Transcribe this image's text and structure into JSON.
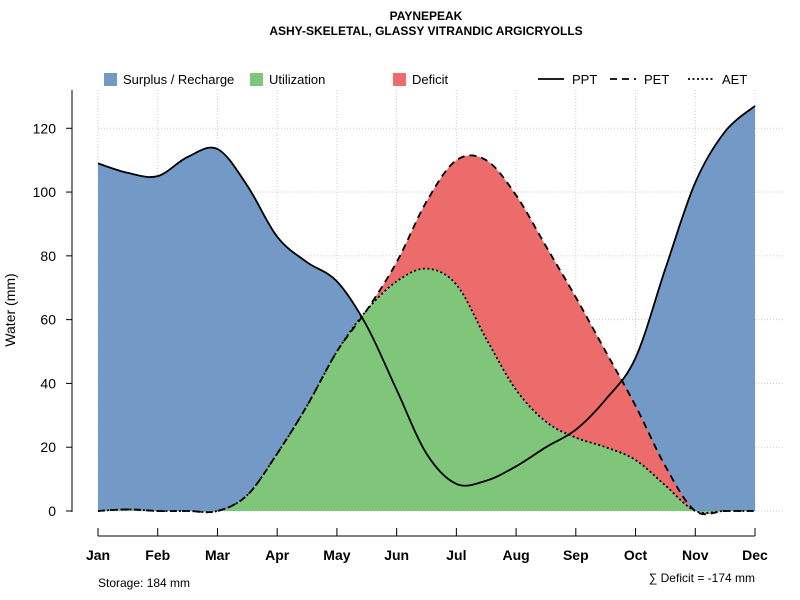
{
  "chart_data": {
    "type": "area",
    "title": "PAYNEPEAK",
    "subtitle": "ASHY-SKELETAL, GLASSY VITRANDIC ARGICRYOLLS",
    "ylabel": "Water (mm)",
    "xlabel": "",
    "ylim": [
      0,
      132
    ],
    "yticks": [
      0,
      20,
      40,
      60,
      80,
      100,
      120
    ],
    "categories": [
      "Jan",
      "Feb",
      "Mar",
      "Apr",
      "May",
      "Jun",
      "Jul",
      "Aug",
      "Sep",
      "Oct",
      "Nov",
      "Dec"
    ],
    "x": [
      1,
      2,
      3,
      4,
      5,
      6,
      7,
      8,
      9,
      10,
      11,
      12
    ],
    "grid": true,
    "series": [
      {
        "name": "PPT",
        "linestyle": "solid",
        "points": [
          [
            1,
            109
          ],
          [
            1.5,
            106
          ],
          [
            2,
            105
          ],
          [
            2.5,
            111
          ],
          [
            3,
            113.5
          ],
          [
            3.5,
            102
          ],
          [
            4,
            86
          ],
          [
            4.5,
            78
          ],
          [
            5,
            72
          ],
          [
            5.5,
            58
          ],
          [
            6,
            38
          ],
          [
            6.5,
            18
          ],
          [
            7,
            8.5
          ],
          [
            7.5,
            9.5
          ],
          [
            8,
            14
          ],
          [
            8.5,
            20
          ],
          [
            9,
            25.5
          ],
          [
            9.5,
            35
          ],
          [
            10,
            48
          ],
          [
            10.5,
            76
          ],
          [
            11,
            103
          ],
          [
            11.5,
            119
          ],
          [
            12,
            127
          ]
        ]
      },
      {
        "name": "PET",
        "linestyle": "dashed",
        "points": [
          [
            1,
            0
          ],
          [
            1.5,
            0.5
          ],
          [
            2,
            0
          ],
          [
            2.5,
            0
          ],
          [
            3,
            0
          ],
          [
            3.5,
            5
          ],
          [
            4,
            18
          ],
          [
            4.5,
            33
          ],
          [
            5,
            50
          ],
          [
            5.5,
            63
          ],
          [
            6,
            78
          ],
          [
            6.5,
            97
          ],
          [
            7,
            110
          ],
          [
            7.5,
            110
          ],
          [
            8,
            99
          ],
          [
            8.5,
            83
          ],
          [
            9,
            67
          ],
          [
            9.5,
            50
          ],
          [
            10,
            33
          ],
          [
            10.5,
            14
          ],
          [
            11,
            0
          ],
          [
            11.5,
            0
          ],
          [
            12,
            0
          ]
        ]
      },
      {
        "name": "AET",
        "linestyle": "dotted",
        "points": [
          [
            1,
            0
          ],
          [
            1.5,
            0.5
          ],
          [
            2,
            0
          ],
          [
            2.5,
            0
          ],
          [
            3,
            0
          ],
          [
            3.5,
            5
          ],
          [
            4,
            18
          ],
          [
            4.5,
            33
          ],
          [
            5,
            50
          ],
          [
            5.5,
            63
          ],
          [
            6,
            72
          ],
          [
            6.5,
            76
          ],
          [
            7,
            71
          ],
          [
            7.5,
            54
          ],
          [
            8,
            38
          ],
          [
            8.5,
            28
          ],
          [
            9,
            23
          ],
          [
            9.5,
            20
          ],
          [
            10,
            16
          ],
          [
            10.5,
            8
          ],
          [
            11,
            0
          ],
          [
            11.5,
            0
          ],
          [
            12,
            0
          ]
        ]
      }
    ],
    "areas": [
      {
        "name": "Surplus / Recharge",
        "color": "#7399C6",
        "between": [
          "PPT",
          "baseline"
        ]
      },
      {
        "name": "Deficit",
        "color": "#EC6B6B",
        "between": [
          "PET",
          "AET"
        ]
      },
      {
        "name": "Utilization",
        "color": "#7FC57A",
        "between": [
          "AET",
          "baseline"
        ]
      }
    ],
    "legend": [
      {
        "label": "Surplus / Recharge",
        "kind": "fill",
        "color": "#7399C6"
      },
      {
        "label": "Utilization",
        "kind": "fill",
        "color": "#7FC57A"
      },
      {
        "label": "Deficit",
        "kind": "fill",
        "color": "#EC6B6B"
      },
      {
        "label": "PPT",
        "kind": "line",
        "linestyle": "solid"
      },
      {
        "label": "PET",
        "kind": "line",
        "linestyle": "dashed"
      },
      {
        "label": "AET",
        "kind": "line",
        "linestyle": "dotted"
      }
    ],
    "legend_position": "top",
    "annotations": {
      "storage": "Storage: 184 mm",
      "deficit": "∑ Deficit = -174 mm"
    }
  }
}
